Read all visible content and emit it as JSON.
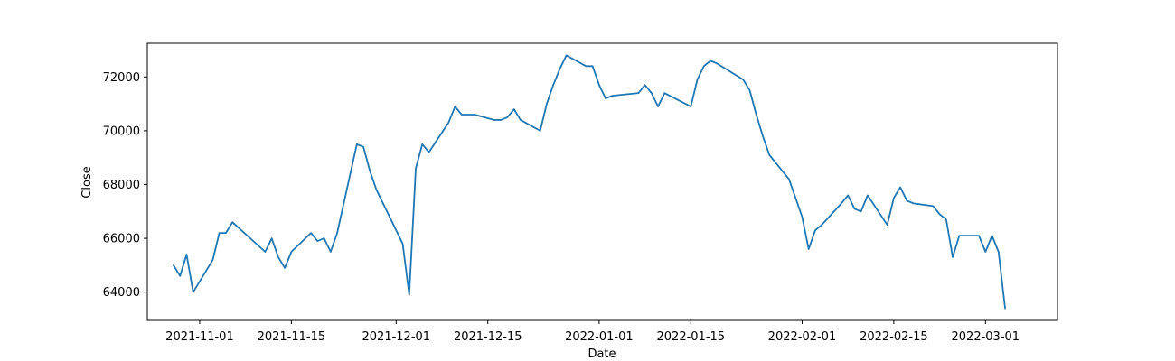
{
  "chart_data": {
    "type": "line",
    "xlabel": "Date",
    "ylabel": "Close",
    "xlim": [
      "2021-10-24",
      "2022-03-12"
    ],
    "ylim": [
      62950,
      73250
    ],
    "grid": false,
    "x_tick_labels": [
      "2021-11-01",
      "2021-11-15",
      "2021-12-01",
      "2021-12-15",
      "2022-01-01",
      "2022-01-15",
      "2022-02-01",
      "2022-02-15",
      "2022-03-01"
    ],
    "y_tick_labels": [
      "64000",
      "66000",
      "68000",
      "70000",
      "72000"
    ],
    "line_color": "#1f77b4",
    "series": [
      {
        "x": [
          "2021-10-28",
          "2021-10-29",
          "2021-10-30",
          "2021-10-31",
          "2021-11-03",
          "2021-11-04",
          "2021-11-05",
          "2021-11-06",
          "2021-11-11",
          "2021-11-12",
          "2021-11-13",
          "2021-11-14",
          "2021-11-15",
          "2021-11-18",
          "2021-11-19",
          "2021-11-20",
          "2021-11-21",
          "2021-11-22",
          "2021-11-25",
          "2021-11-26",
          "2021-11-27",
          "2021-11-28",
          "2021-12-02",
          "2021-12-03",
          "2021-12-04",
          "2021-12-05",
          "2021-12-06",
          "2021-12-09",
          "2021-12-10",
          "2021-12-11",
          "2021-12-13",
          "2021-12-16",
          "2021-12-17",
          "2021-12-18",
          "2021-12-19",
          "2021-12-20",
          "2021-12-23",
          "2021-12-24",
          "2021-12-25",
          "2021-12-26",
          "2021-12-27",
          "2021-12-30",
          "2021-12-31",
          "2022-01-01",
          "2022-01-02",
          "2022-01-03",
          "2022-01-07",
          "2022-01-08",
          "2022-01-09",
          "2022-01-10",
          "2022-01-11",
          "2022-01-15",
          "2022-01-16",
          "2022-01-17",
          "2022-01-18",
          "2022-01-19",
          "2022-01-23",
          "2022-01-24",
          "2022-01-25",
          "2022-01-26",
          "2022-01-27",
          "2022-01-30",
          "2022-01-31",
          "2022-02-01",
          "2022-02-02",
          "2022-02-03",
          "2022-02-04",
          "2022-02-07",
          "2022-02-08",
          "2022-02-09",
          "2022-02-10",
          "2022-02-11",
          "2022-02-14",
          "2022-02-15",
          "2022-02-16",
          "2022-02-17",
          "2022-02-18",
          "2022-02-21",
          "2022-02-22",
          "2022-02-23",
          "2022-02-24",
          "2022-02-25",
          "2022-02-28",
          "2022-03-01",
          "2022-03-02",
          "2022-03-03",
          "2022-03-04"
        ],
        "y": [
          65000,
          64600,
          65400,
          64000,
          65200,
          66200,
          66200,
          66600,
          65500,
          66000,
          65300,
          64900,
          65500,
          66200,
          65900,
          66000,
          65500,
          66200,
          69500,
          69400,
          68500,
          67800,
          65800,
          63900,
          68600,
          69500,
          69200,
          70300,
          70900,
          70600,
          70600,
          70400,
          70400,
          70500,
          70800,
          70400,
          70000,
          71000,
          71700,
          72300,
          72800,
          72400,
          72400,
          71700,
          71200,
          71300,
          71400,
          71700,
          71400,
          70900,
          71400,
          70900,
          71900,
          72400,
          72600,
          72500,
          71900,
          71500,
          70600,
          69800,
          69100,
          68200,
          67500,
          66800,
          65600,
          66300,
          66500,
          67300,
          67600,
          67100,
          67000,
          67600,
          66500,
          67500,
          67900,
          67400,
          67300,
          67200,
          66900,
          66700,
          65300,
          66100,
          66100,
          65500,
          66100,
          65500,
          63400
        ]
      }
    ]
  }
}
